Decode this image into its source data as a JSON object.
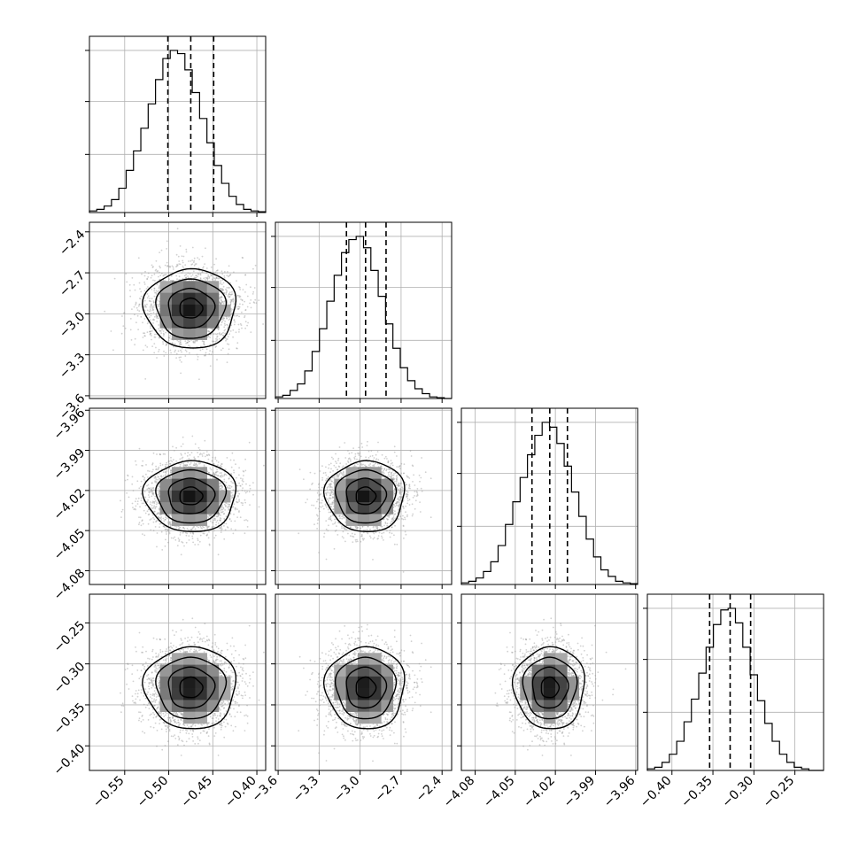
{
  "colors": {
    "frame": "#000000",
    "grid": "#b0b0b0",
    "hist": "#000000",
    "quantile": "#000000",
    "points": "#9a9a9a"
  },
  "chart_data": {
    "type": "corner",
    "title": "",
    "parameters": [
      {
        "index": 0,
        "label": "",
        "range": [
          -0.59,
          -0.39
        ],
        "median": -0.475,
        "q16": -0.501,
        "q84": -0.449,
        "ticks": [
          -0.55,
          -0.5,
          -0.45,
          -0.4
        ],
        "tick_labels": [
          "−0.55",
          "−0.50",
          "−0.45",
          "−0.40"
        ]
      },
      {
        "index": 1,
        "label": "",
        "range": [
          -3.62,
          -2.33
        ],
        "median": -2.96,
        "q16": -3.1,
        "q84": -2.81,
        "ticks": [
          -3.6,
          -3.3,
          -3.0,
          -2.7,
          -2.4
        ],
        "tick_labels": [
          "−3.6",
          "−3.3",
          "−3.0",
          "−2.7",
          "−2.4"
        ]
      },
      {
        "index": 2,
        "label": "",
        "range": [
          -4.0903,
          -3.9585
        ],
        "median": -4.0242,
        "q16": -4.0375,
        "q84": -4.011,
        "ticks": [
          -4.08,
          -4.05,
          -4.02,
          -3.99,
          -3.96
        ],
        "tick_labels": [
          "−4.08",
          "−4.05",
          "−4.02",
          "−3.99",
          "−3.96"
        ]
      },
      {
        "index": 3,
        "label": "",
        "range": [
          -0.43,
          -0.215
        ],
        "median": -0.329,
        "q16": -0.354,
        "q84": -0.304,
        "ticks": [
          -0.4,
          -0.35,
          -0.3,
          -0.25
        ],
        "tick_labels": [
          "−0.40",
          "−0.35",
          "−0.30",
          "−0.25"
        ]
      }
    ],
    "histograms": [
      {
        "param": 0,
        "counts": [
          0.01,
          0.02,
          0.04,
          0.08,
          0.15,
          0.26,
          0.38,
          0.52,
          0.67,
          0.82,
          0.95,
          1.0,
          0.98,
          0.88,
          0.74,
          0.58,
          0.43,
          0.29,
          0.18,
          0.1,
          0.05,
          0.02,
          0.01,
          0.005
        ]
      },
      {
        "param": 1,
        "counts": [
          0.01,
          0.02,
          0.05,
          0.09,
          0.17,
          0.29,
          0.43,
          0.6,
          0.76,
          0.9,
          0.98,
          1.0,
          0.93,
          0.79,
          0.63,
          0.46,
          0.31,
          0.19,
          0.11,
          0.06,
          0.03,
          0.01,
          0.005,
          0.0
        ]
      },
      {
        "param": 2,
        "counts": [
          0.01,
          0.02,
          0.04,
          0.08,
          0.14,
          0.24,
          0.37,
          0.51,
          0.66,
          0.8,
          0.92,
          1.0,
          0.97,
          0.87,
          0.73,
          0.57,
          0.42,
          0.28,
          0.17,
          0.09,
          0.05,
          0.02,
          0.01,
          0.005
        ]
      },
      {
        "param": 3,
        "counts": [
          0.01,
          0.02,
          0.05,
          0.1,
          0.18,
          0.3,
          0.44,
          0.6,
          0.76,
          0.9,
          0.99,
          1.0,
          0.91,
          0.76,
          0.59,
          0.43,
          0.29,
          0.18,
          0.1,
          0.05,
          0.02,
          0.01,
          0.0,
          0.0
        ]
      }
    ],
    "contour_panels": [
      {
        "x_param": 0,
        "y_param": 1
      },
      {
        "x_param": 0,
        "y_param": 2
      },
      {
        "x_param": 1,
        "y_param": 2
      },
      {
        "x_param": 0,
        "y_param": 3
      },
      {
        "x_param": 1,
        "y_param": 3
      },
      {
        "x_param": 2,
        "y_param": 3
      }
    ],
    "contour_sigma_levels": [
      0.5,
      1.0,
      1.5,
      2.0
    ],
    "grid": true,
    "legend": "none"
  }
}
